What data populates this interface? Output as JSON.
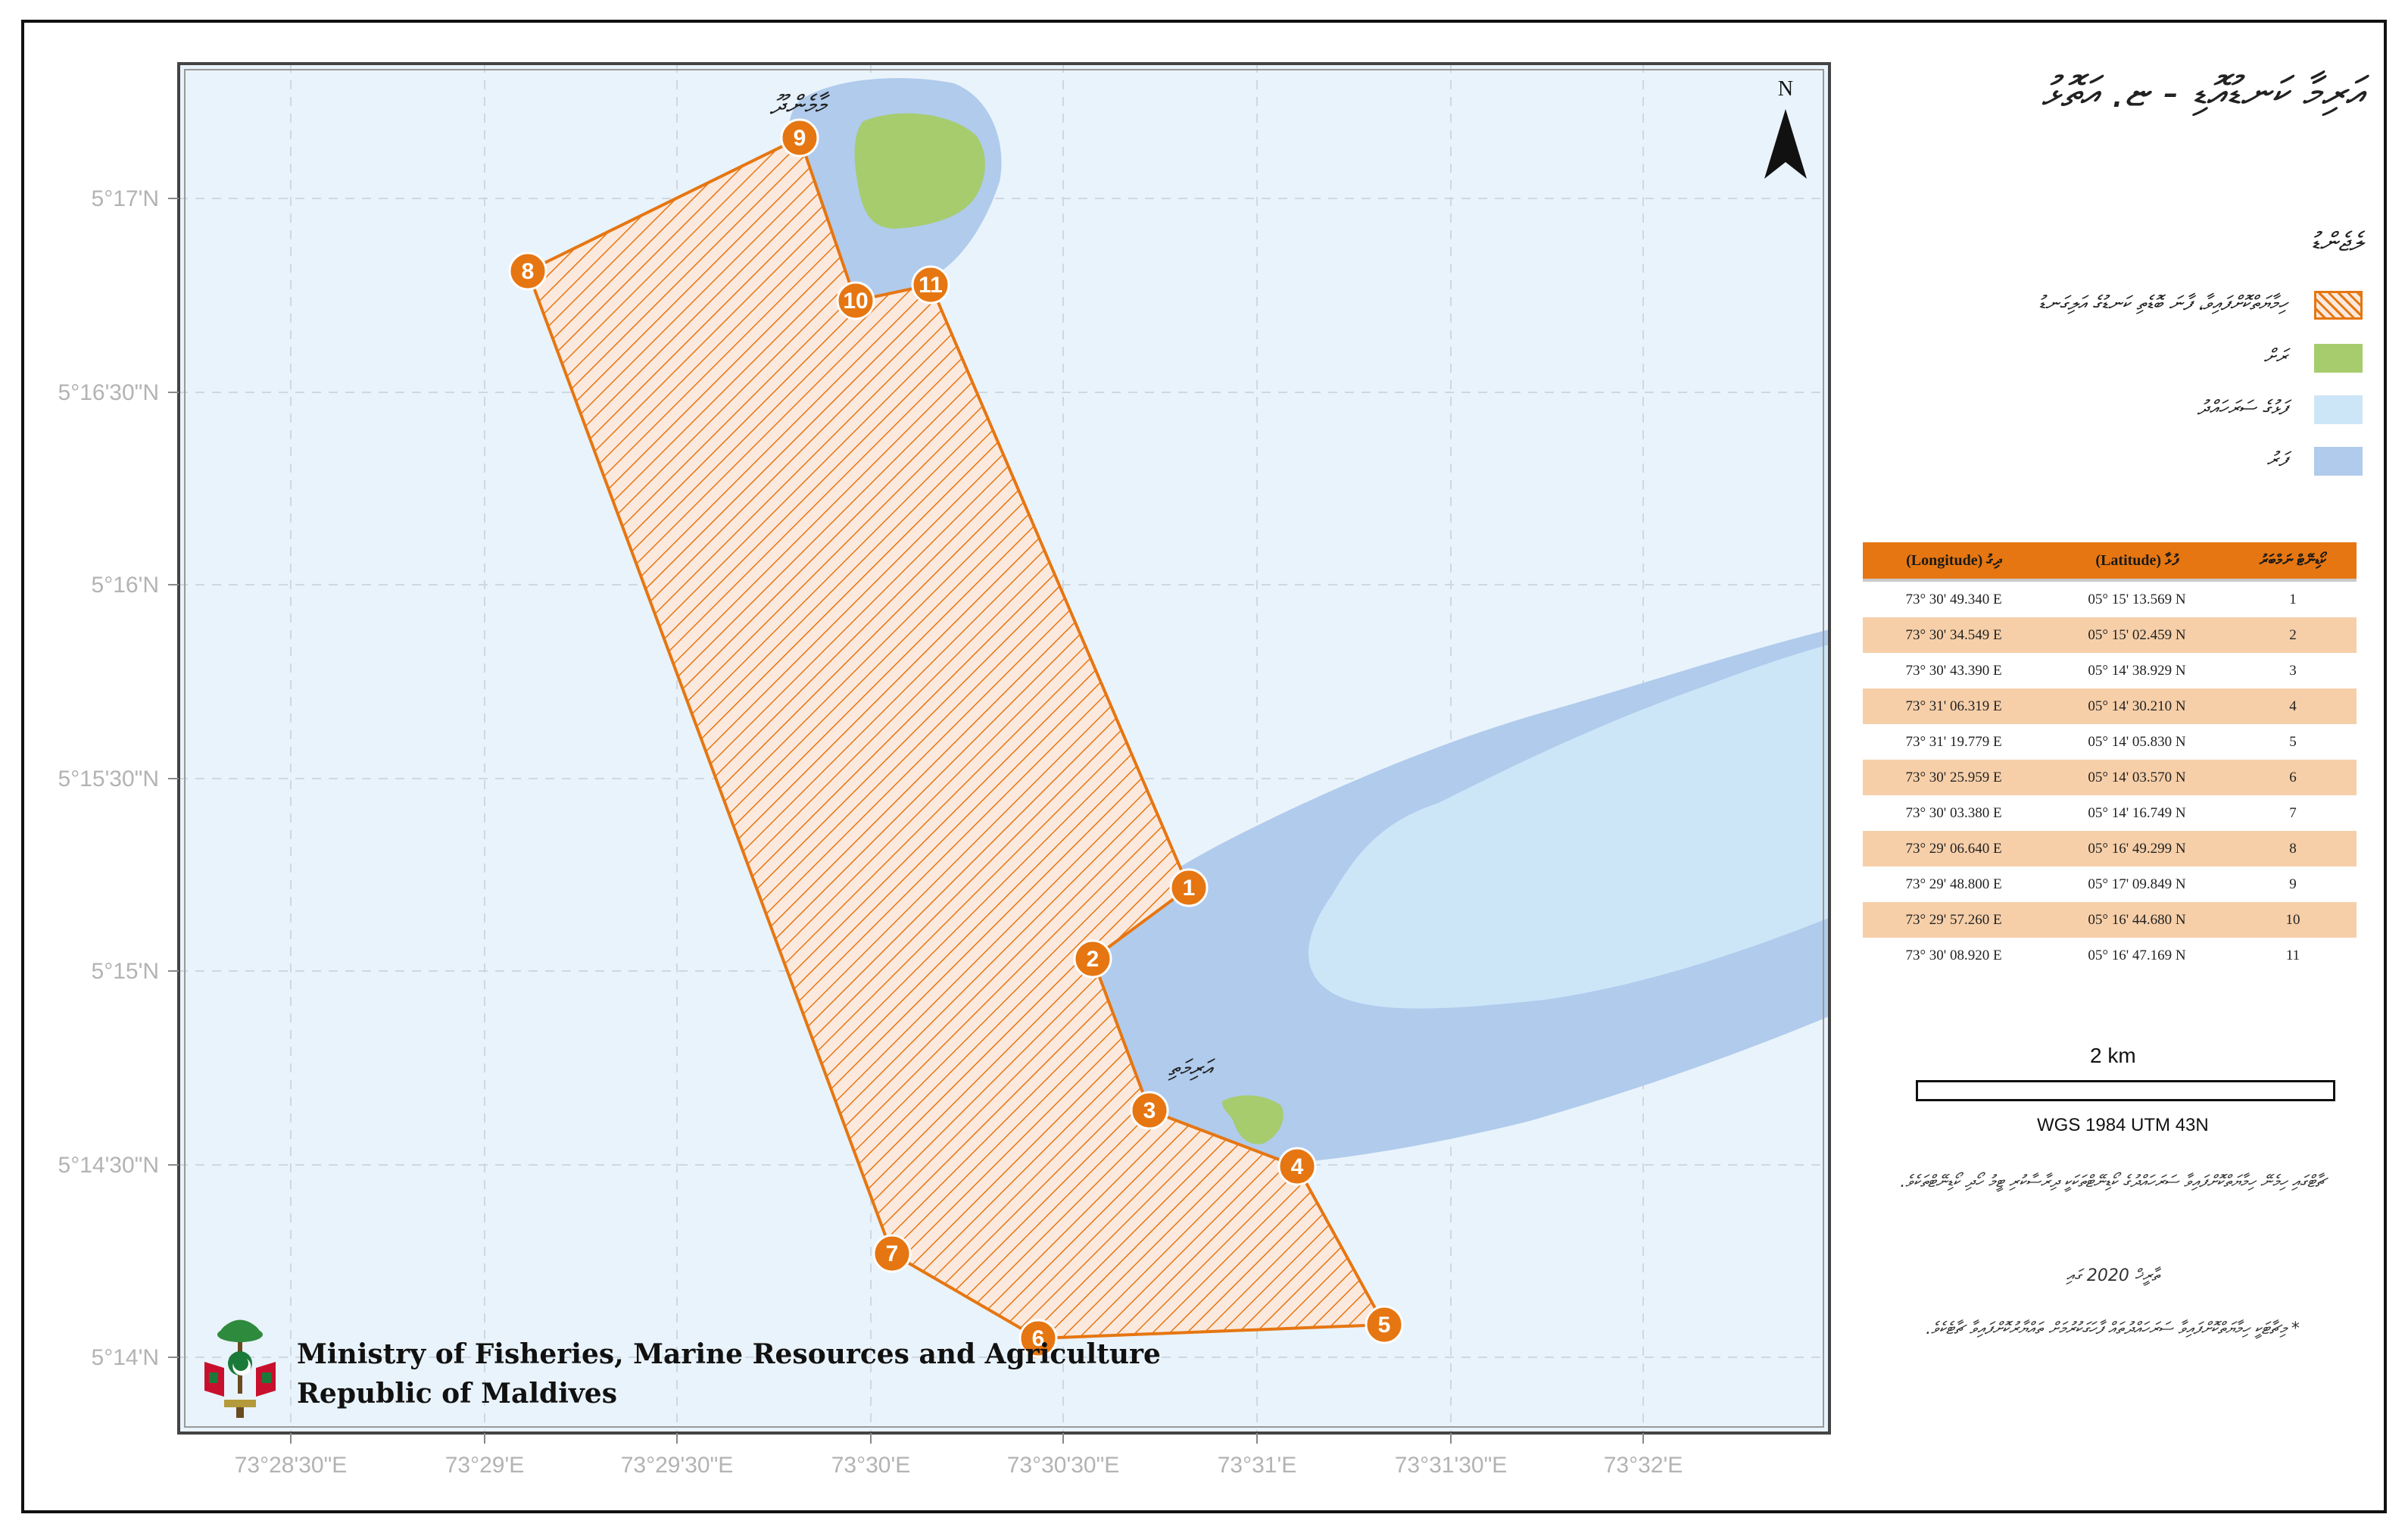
{
  "title": "އަރިމާ ކަނޑުއޮޑި - ޏ. އަތޮޅު",
  "north_label": "N",
  "islands": {
    "north": "މާމެންދޫ",
    "south": "އަރިމަތި"
  },
  "markers": [
    "1",
    "2",
    "3",
    "4",
    "5",
    "6",
    "7",
    "8",
    "9",
    "10",
    "11"
  ],
  "axes": {
    "lat_ticks": [
      "5°17'N",
      "5°16'30\"N",
      "5°16'N",
      "5°15'30\"N",
      "5°15'N",
      "5°14'30\"N",
      "5°14'N"
    ],
    "lon_ticks": [
      "73°28'30\"E",
      "73°29'E",
      "73°29'30\"E",
      "73°30'E",
      "73°30'30\"E",
      "73°31'E",
      "73°31'30\"E",
      "73°32'E"
    ]
  },
  "legend": {
    "heading": "ލެޖެންޑު",
    "items": [
      {
        "label": "ހިމާޔަތްކޮށްފައިވާ، ފާނަ ބޮޑެތި ކަނޑުގެ އަލިގަނޑު",
        "color": "#e67611",
        "kind": "hatch"
      },
      {
        "label": "ރަށް",
        "color": "#a6cc6e",
        "kind": "fill"
      },
      {
        "label": "ފަޅުގެ ސަރަހައްދު",
        "color": "#cce6f8",
        "kind": "fill"
      },
      {
        "label": "ފަރު",
        "color": "#b0cbec",
        "kind": "fill"
      }
    ]
  },
  "table": {
    "headers": [
      "(Longitude) ދިގު",
      "(Latitude) ފުޅާ",
      "ކޯޑިނޭޓް ނަމްބަރު"
    ],
    "rows": [
      [
        "73° 30' 49.340 E",
        "05° 15' 13.569 N",
        "1"
      ],
      [
        "73° 30' 34.549 E",
        "05° 15' 02.459 N",
        "2"
      ],
      [
        "73° 30' 43.390 E",
        "05° 14' 38.929 N",
        "3"
      ],
      [
        "73° 31' 06.319 E",
        "05° 14' 30.210 N",
        "4"
      ],
      [
        "73° 31' 19.779 E",
        "05° 14' 05.830 N",
        "5"
      ],
      [
        "73° 30' 25.959 E",
        "05° 14' 03.570 N",
        "6"
      ],
      [
        "73° 30' 03.380 E",
        "05° 14' 16.749 N",
        "7"
      ],
      [
        "73° 29' 06.640 E",
        "05° 16' 49.299 N",
        "8"
      ],
      [
        "73° 29' 48.800 E",
        "05° 17' 09.849 N",
        "9"
      ],
      [
        "73° 29' 57.260 E",
        "05° 16' 44.680 N",
        "10"
      ],
      [
        "73° 30' 08.920 E",
        "05° 16' 47.169 N",
        "11"
      ]
    ]
  },
  "scale": {
    "label": "2  km",
    "crs": "WGS 1984 UTM 43N"
  },
  "notes": [
    "ޗާޓްގައި ހިމެނޭ ހިމާޔަތްކޮށްފައިވާ ސަރަހައްދުގެ ކޯޑިނޭޓްތަކަކީ ދިރާސާކުރި ޓީމު ހޯދި ކޯޑިނޭޓްތަކެވެ.",
    "ތާރީޚް 2020 ގައި",
    "* މިޗާޓަކީ ހިމާޔަތްކޮށްފައިވާ ސަރަހައްދުތައް ފާހަގަކުރުމަށް ތައްޔާރުކޮށްފައިވާ ޗާޓެކެވެ."
  ],
  "ministry": {
    "line1": "Ministry of Fisheries, Marine Resources and Agriculture",
    "line2": "Republic of Maldives"
  },
  "colors": {
    "sea": "#e9f3fb",
    "reef": "#b0cbec",
    "lagoon": "#cce6f8",
    "land": "#a6cc6e",
    "boundary": "#e67611",
    "grid": "#cfd8e2"
  }
}
